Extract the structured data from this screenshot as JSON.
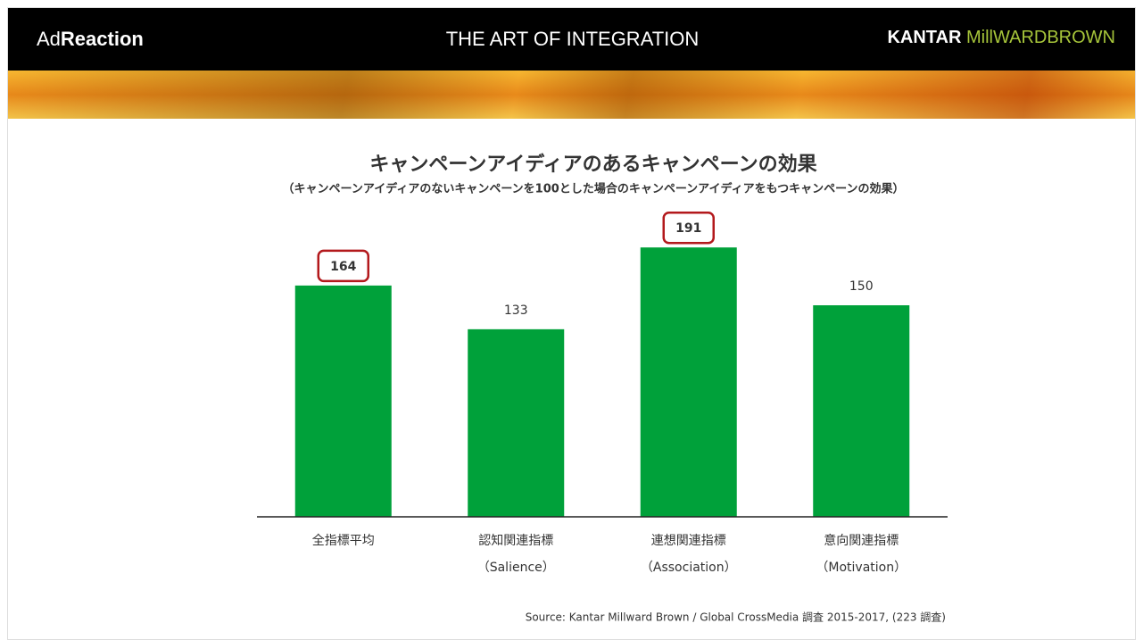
{
  "header": {
    "brand_left_light": "Ad",
    "brand_left_bold": "Reaction",
    "center": "THE ART OF INTEGRATION",
    "brand_right_bold": "KANTAR",
    "brand_right_green": "MillWARDBROWN"
  },
  "chart_data": {
    "type": "bar",
    "title": "キャンペーンアイディアのあるキャンペーンの効果",
    "subtitle": "（キャンペーンアイディアのないキャンペーンを100とした場合のキャンペーンアイディアをもつキャンペーンの効果）",
    "categories": [
      "全指標平均",
      "認知関連指標",
      "連想関連指標",
      "意向関連指標"
    ],
    "category_notes": [
      null,
      "（Salience）",
      "（Association）",
      "（Motivation）"
    ],
    "values": [
      164,
      133,
      191,
      150
    ],
    "highlight": [
      true,
      false,
      true,
      false
    ],
    "color": "#00a13a",
    "highlight_color": "#b3191c",
    "ylim": [
      0,
      200
    ],
    "source": "Source: Kantar Millward Brown / Global CrossMedia 調査 2015-2017, (223 調査)"
  }
}
